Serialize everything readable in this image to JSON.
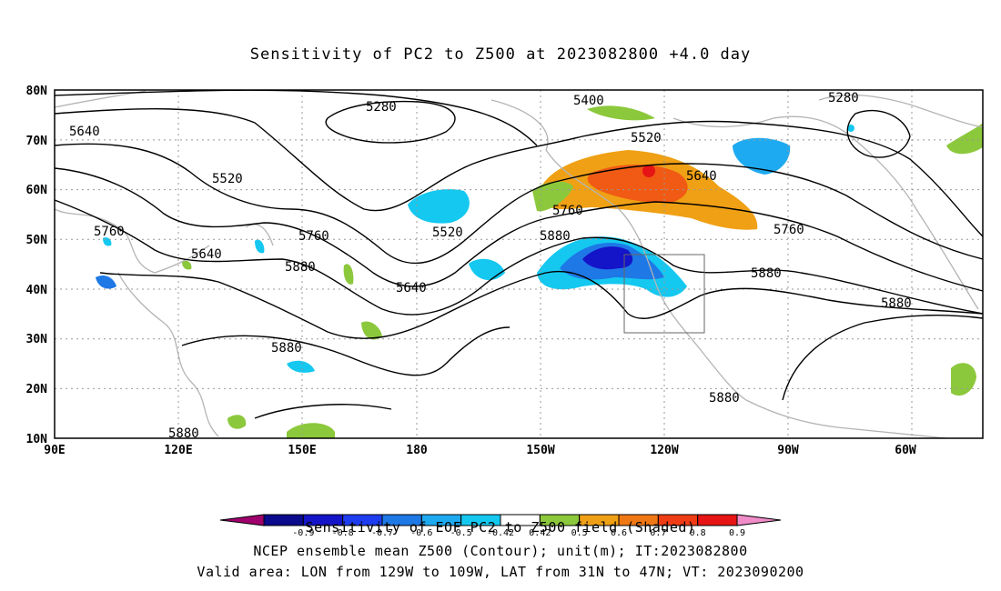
{
  "title": "Sensitivity of PC2 to Z500 at 2023082800 +4.0 day",
  "lat_labels": [
    "80N",
    "70N",
    "60N",
    "50N",
    "40N",
    "30N",
    "20N",
    "10N"
  ],
  "lon_labels": [
    "90E",
    "120E",
    "150E",
    "180",
    "150W",
    "120W",
    "90W",
    "60W"
  ],
  "contour_labels": [
    "5640",
    "5520",
    "5760",
    "5640",
    "5760",
    "5880",
    "5640",
    "5880",
    "5280",
    "5520",
    "5400",
    "5520",
    "5640",
    "5760",
    "5880",
    "5760",
    "5880",
    "5880",
    "5280",
    "5880",
    "5880"
  ],
  "colorbar": {
    "ticks": [
      "-0.9",
      "-0.8",
      "-0.7",
      "-0.6",
      "-0.5",
      "-0.42",
      "0.42",
      "0.5",
      "0.6",
      "0.7",
      "0.8",
      "0.9"
    ],
    "colors": [
      "#a0006e",
      "#0a0a8c",
      "#1414c8",
      "#1e3cf0",
      "#1e78e6",
      "#1eaaf0",
      "#14c8f0",
      "#ffffff",
      "#8cc83c",
      "#f0a014",
      "#f07814",
      "#f03c14",
      "#e61414",
      "#f08cc8"
    ]
  },
  "footer": {
    "line1": "Sensitivity of EOF PC2 to Z500 field (Shaded)",
    "line2": "NCEP ensemble mean Z500 (Contour); unit(m); IT:2023082800",
    "line3": "Valid area: LON from 129W to 109W, LAT from 31N to 47N; VT: 2023090200"
  }
}
